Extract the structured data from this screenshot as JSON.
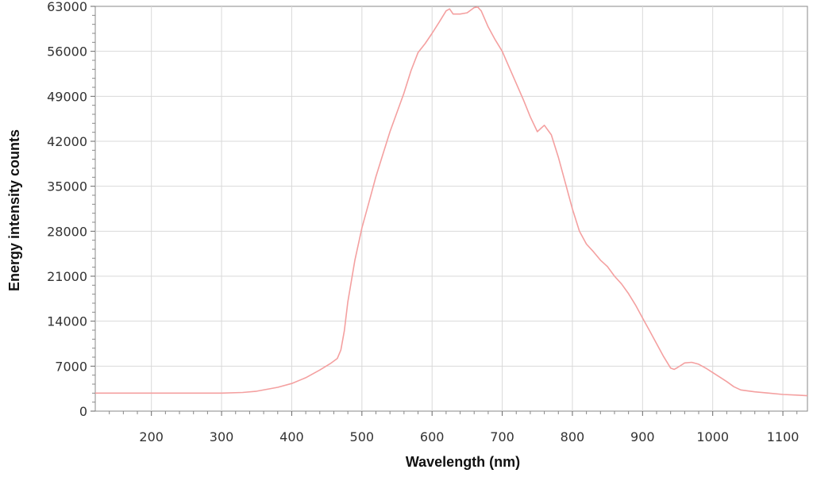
{
  "chart_data": {
    "type": "line",
    "title": "",
    "xlabel": "Wavelength (nm)",
    "ylabel": "Energy intensity counts",
    "xlim": [
      120,
      1135
    ],
    "ylim": [
      0,
      63000
    ],
    "x_ticks": [
      200,
      300,
      400,
      500,
      600,
      700,
      800,
      900,
      1000,
      1100
    ],
    "x_tick_labels": [
      "200",
      "300",
      "400",
      "500",
      "600",
      "700",
      "800",
      "900",
      "1000",
      "1100"
    ],
    "y_ticks": [
      0,
      7000,
      14000,
      21000,
      28000,
      35000,
      42000,
      49000,
      56000,
      63000
    ],
    "y_tick_labels": [
      "0",
      "7000",
      "14000",
      "21000",
      "28000",
      "35000",
      "42000",
      "49000",
      "56000",
      "63000"
    ],
    "grid": true,
    "line_color": "#f4a0a0",
    "series": [
      {
        "x": [
          120,
          200,
          300,
          330,
          350,
          380,
          400,
          420,
          440,
          455,
          465,
          470,
          475,
          480,
          490,
          500,
          510,
          520,
          530,
          540,
          550,
          560,
          570,
          580,
          590,
          600,
          610,
          620,
          625,
          630,
          640,
          650,
          660,
          665,
          670,
          680,
          690,
          700,
          710,
          720,
          730,
          740,
          750,
          760,
          770,
          780,
          790,
          800,
          810,
          820,
          830,
          840,
          850,
          860,
          870,
          880,
          890,
          900,
          910,
          920,
          930,
          940,
          945,
          950,
          960,
          970,
          980,
          990,
          1000,
          1010,
          1020,
          1030,
          1040,
          1060,
          1080,
          1100,
          1120,
          1135
        ],
        "y": [
          2800,
          2800,
          2800,
          2900,
          3100,
          3700,
          4300,
          5200,
          6400,
          7400,
          8200,
          9500,
          12500,
          17000,
          23500,
          28500,
          32500,
          36500,
          40000,
          43500,
          46500,
          49500,
          53000,
          55800,
          57200,
          58800,
          60500,
          62300,
          62600,
          61800,
          61800,
          62000,
          62800,
          62900,
          62300,
          59800,
          57800,
          56000,
          53500,
          51000,
          48500,
          45800,
          43500,
          44500,
          43000,
          39500,
          35500,
          31500,
          28000,
          26000,
          24800,
          23500,
          22500,
          21000,
          19800,
          18300,
          16500,
          14500,
          12500,
          10500,
          8500,
          6700,
          6500,
          6800,
          7500,
          7600,
          7300,
          6700,
          6000,
          5300,
          4600,
          3800,
          3300,
          3000,
          2800,
          2600,
          2500,
          2400
        ]
      }
    ]
  }
}
